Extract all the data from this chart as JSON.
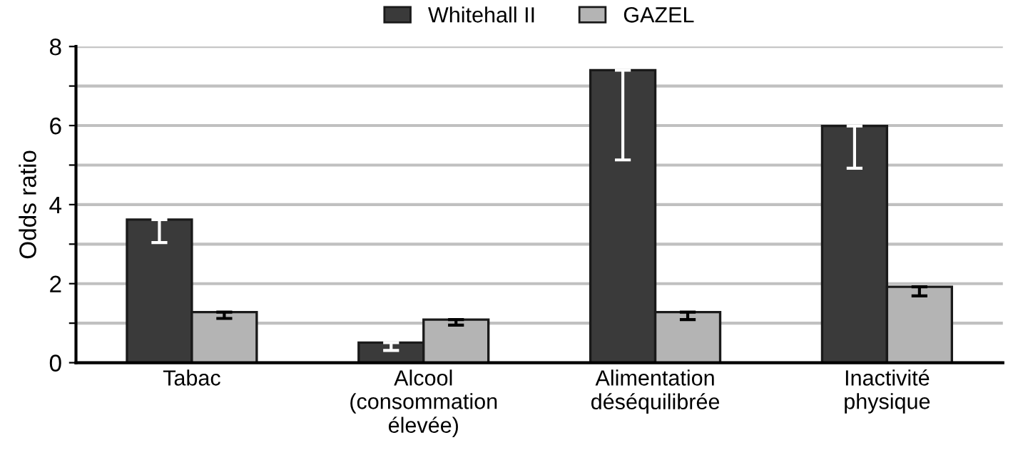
{
  "chart_data": {
    "type": "bar",
    "ylabel": "Odds ratio",
    "categories": [
      "Tabac",
      "Alcool\n(consommation\nélevée)",
      "Alimentation\ndéséquilibrée",
      "Inactivité\nphysique"
    ],
    "series": [
      {
        "name": "Whitehall II",
        "color": "#3a3a3a",
        "values": [
          3.62,
          0.51,
          7.4,
          5.99
        ],
        "errors": [
          [
            3.04,
            3.62
          ],
          [
            0.31,
            0.51
          ],
          [
            5.13,
            7.4
          ],
          [
            4.92,
            5.99
          ]
        ]
      },
      {
        "name": "GAZEL",
        "color": "#b4b4b4",
        "values": [
          1.28,
          1.09,
          1.28,
          1.92
        ],
        "errors": [
          [
            1.12,
            1.28
          ],
          [
            0.95,
            1.09
          ],
          [
            1.09,
            1.28
          ],
          [
            1.69,
            1.92
          ]
        ]
      }
    ],
    "ylim": [
      0,
      8
    ],
    "yticks": [
      0,
      {
        "value": 1,
        "label": null
      },
      2,
      {
        "value": 3,
        "label": null
      },
      4,
      {
        "value": 5,
        "label": null
      },
      6,
      {
        "value": 7,
        "label": null
      },
      8
    ],
    "grid": "y",
    "legend": "top"
  }
}
